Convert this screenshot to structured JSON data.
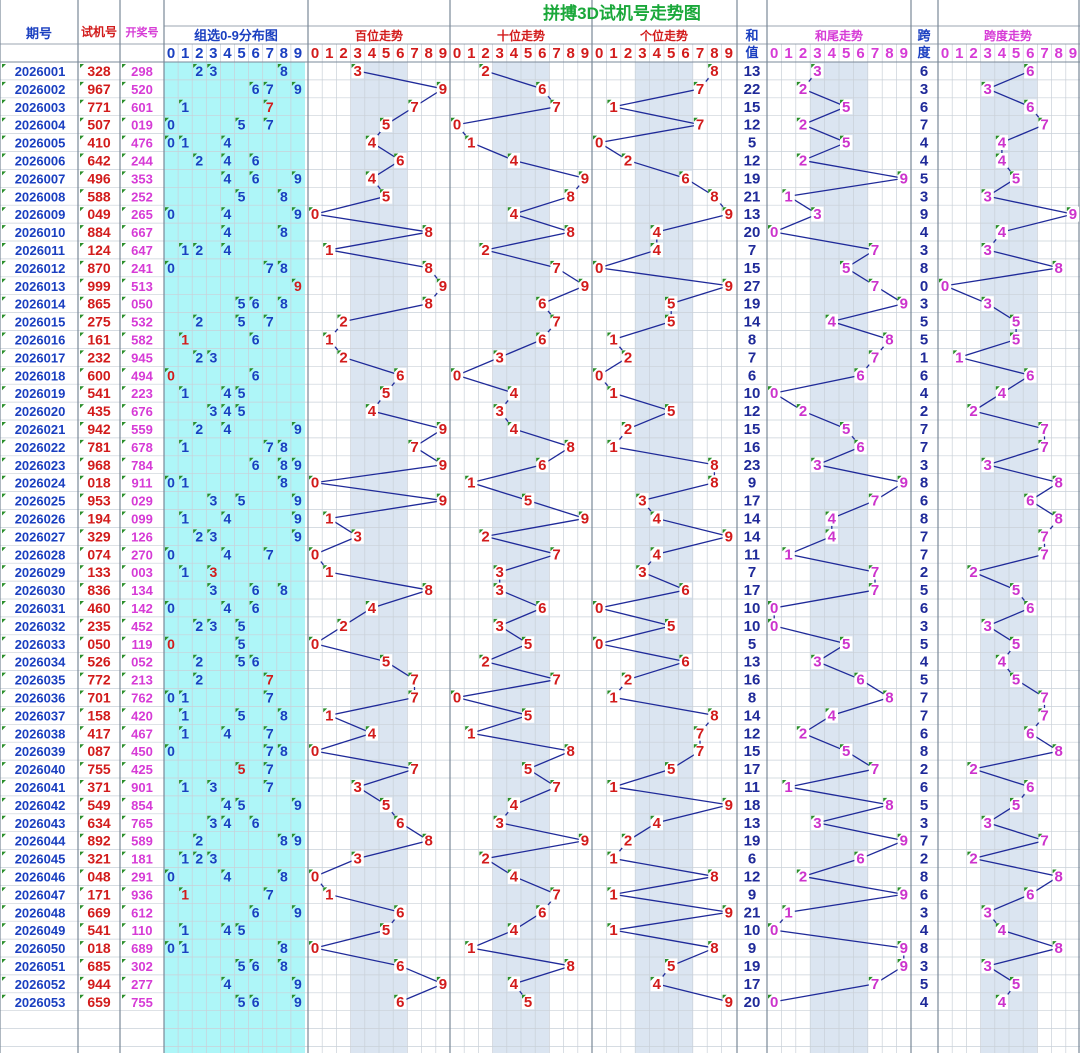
{
  "title": "拼搏3D试机号走势图",
  "headers": {
    "period": "期号",
    "test": "试机号",
    "draw": "开奖号",
    "dist": "组选0-9分布图",
    "hundreds": "百位走势",
    "tens": "十位走势",
    "units": "个位走势",
    "sum_top": "和",
    "sum_bottom": "值",
    "tail": "和尾走势",
    "span_top": "跨",
    "span_bottom": "度",
    "span_trend": "跨度走势"
  },
  "digits": [
    "0",
    "1",
    "2",
    "3",
    "4",
    "5",
    "6",
    "7",
    "8",
    "9"
  ],
  "colors": {
    "title": "#1aa83a",
    "header_blue": "#1a3fc0",
    "header_red": "#d21b1b",
    "header_pink": "#d63bd6",
    "dist_bg": "#aef6f8",
    "band": "#dbe5f1",
    "grid": "#c9d0d8",
    "line": "#1f2a99",
    "sum_text": "#1f2a99",
    "tail_text": "#cc33cc"
  },
  "chart_data": {
    "type": "table",
    "rows": [
      {
        "period": "2026001",
        "test": "328",
        "draw": "298",
        "sum": "13",
        "tail": "3",
        "span": "6"
      },
      {
        "period": "2026002",
        "test": "967",
        "draw": "520",
        "sum": "22",
        "tail": "2",
        "span": "3"
      },
      {
        "period": "2026003",
        "test": "771",
        "draw": "601",
        "sum": "15",
        "tail": "5",
        "span": "6"
      },
      {
        "period": "2026004",
        "test": "507",
        "draw": "019",
        "sum": "12",
        "tail": "2",
        "span": "7"
      },
      {
        "period": "2026005",
        "test": "410",
        "draw": "476",
        "sum": "5",
        "tail": "5",
        "span": "4"
      },
      {
        "period": "2026006",
        "test": "642",
        "draw": "244",
        "sum": "12",
        "tail": "2",
        "span": "4"
      },
      {
        "period": "2026007",
        "test": "496",
        "draw": "353",
        "sum": "19",
        "tail": "9",
        "span": "5"
      },
      {
        "period": "2026008",
        "test": "588",
        "draw": "252",
        "sum": "21",
        "tail": "1",
        "span": "3"
      },
      {
        "period": "2026009",
        "test": "049",
        "draw": "265",
        "sum": "13",
        "tail": "3",
        "span": "9"
      },
      {
        "period": "2026010",
        "test": "884",
        "draw": "667",
        "sum": "20",
        "tail": "0",
        "span": "4"
      },
      {
        "period": "2026011",
        "test": "124",
        "draw": "647",
        "sum": "7",
        "tail": "7",
        "span": "3"
      },
      {
        "period": "2026012",
        "test": "870",
        "draw": "241",
        "sum": "15",
        "tail": "5",
        "span": "8"
      },
      {
        "period": "2026013",
        "test": "999",
        "draw": "513",
        "sum": "27",
        "tail": "7",
        "span": "0"
      },
      {
        "period": "2026014",
        "test": "865",
        "draw": "050",
        "sum": "19",
        "tail": "9",
        "span": "3"
      },
      {
        "period": "2026015",
        "test": "275",
        "draw": "532",
        "sum": "14",
        "tail": "4",
        "span": "5"
      },
      {
        "period": "2026016",
        "test": "161",
        "draw": "582",
        "sum": "8",
        "tail": "8",
        "span": "5"
      },
      {
        "period": "2026017",
        "test": "232",
        "draw": "945",
        "sum": "7",
        "tail": "7",
        "span": "1"
      },
      {
        "period": "2026018",
        "test": "600",
        "draw": "494",
        "sum": "6",
        "tail": "6",
        "span": "6"
      },
      {
        "period": "2026019",
        "test": "541",
        "draw": "223",
        "sum": "10",
        "tail": "0",
        "span": "4"
      },
      {
        "period": "2026020",
        "test": "435",
        "draw": "676",
        "sum": "12",
        "tail": "2",
        "span": "2"
      },
      {
        "period": "2026021",
        "test": "942",
        "draw": "559",
        "sum": "15",
        "tail": "5",
        "span": "7"
      },
      {
        "period": "2026022",
        "test": "781",
        "draw": "678",
        "sum": "16",
        "tail": "6",
        "span": "7"
      },
      {
        "period": "2026023",
        "test": "968",
        "draw": "784",
        "sum": "23",
        "tail": "3",
        "span": "3"
      },
      {
        "period": "2026024",
        "test": "018",
        "draw": "911",
        "sum": "9",
        "tail": "9",
        "span": "8"
      },
      {
        "period": "2026025",
        "test": "953",
        "draw": "029",
        "sum": "17",
        "tail": "7",
        "span": "6"
      },
      {
        "period": "2026026",
        "test": "194",
        "draw": "099",
        "sum": "14",
        "tail": "4",
        "span": "8"
      },
      {
        "period": "2026027",
        "test": "329",
        "draw": "126",
        "sum": "14",
        "tail": "4",
        "span": "7"
      },
      {
        "period": "2026028",
        "test": "074",
        "draw": "270",
        "sum": "11",
        "tail": "1",
        "span": "7"
      },
      {
        "period": "2026029",
        "test": "133",
        "draw": "003",
        "sum": "7",
        "tail": "7",
        "span": "2"
      },
      {
        "period": "2026030",
        "test": "836",
        "draw": "134",
        "sum": "17",
        "tail": "7",
        "span": "5"
      },
      {
        "period": "2026031",
        "test": "460",
        "draw": "142",
        "sum": "10",
        "tail": "0",
        "span": "6"
      },
      {
        "period": "2026032",
        "test": "235",
        "draw": "452",
        "sum": "10",
        "tail": "0",
        "span": "3"
      },
      {
        "period": "2026033",
        "test": "050",
        "draw": "119",
        "sum": "5",
        "tail": "5",
        "span": "5"
      },
      {
        "period": "2026034",
        "test": "526",
        "draw": "052",
        "sum": "13",
        "tail": "3",
        "span": "4"
      },
      {
        "period": "2026035",
        "test": "772",
        "draw": "213",
        "sum": "16",
        "tail": "6",
        "span": "5"
      },
      {
        "period": "2026036",
        "test": "701",
        "draw": "762",
        "sum": "8",
        "tail": "8",
        "span": "7"
      },
      {
        "period": "2026037",
        "test": "158",
        "draw": "420",
        "sum": "14",
        "tail": "4",
        "span": "7"
      },
      {
        "period": "2026038",
        "test": "417",
        "draw": "467",
        "sum": "12",
        "tail": "2",
        "span": "6"
      },
      {
        "period": "2026039",
        "test": "087",
        "draw": "450",
        "sum": "15",
        "tail": "5",
        "span": "8"
      },
      {
        "period": "2026040",
        "test": "755",
        "draw": "425",
        "sum": "17",
        "tail": "7",
        "span": "2"
      },
      {
        "period": "2026041",
        "test": "371",
        "draw": "901",
        "sum": "11",
        "tail": "1",
        "span": "6"
      },
      {
        "period": "2026042",
        "test": "549",
        "draw": "854",
        "sum": "18",
        "tail": "8",
        "span": "5"
      },
      {
        "period": "2026043",
        "test": "634",
        "draw": "765",
        "sum": "13",
        "tail": "3",
        "span": "3"
      },
      {
        "period": "2026044",
        "test": "892",
        "draw": "589",
        "sum": "19",
        "tail": "9",
        "span": "7"
      },
      {
        "period": "2026045",
        "test": "321",
        "draw": "181",
        "sum": "6",
        "tail": "6",
        "span": "2"
      },
      {
        "period": "2026046",
        "test": "048",
        "draw": "291",
        "sum": "12",
        "tail": "2",
        "span": "8"
      },
      {
        "period": "2026047",
        "test": "171",
        "draw": "936",
        "sum": "9",
        "tail": "9",
        "span": "6"
      },
      {
        "period": "2026048",
        "test": "669",
        "draw": "612",
        "sum": "21",
        "tail": "1",
        "span": "3"
      },
      {
        "period": "2026049",
        "test": "541",
        "draw": "110",
        "sum": "10",
        "tail": "0",
        "span": "4"
      },
      {
        "period": "2026050",
        "test": "018",
        "draw": "689",
        "sum": "9",
        "tail": "9",
        "span": "8"
      },
      {
        "period": "2026051",
        "test": "685",
        "draw": "302",
        "sum": "19",
        "tail": "9",
        "span": "3"
      },
      {
        "period": "2026052",
        "test": "944",
        "draw": "277",
        "sum": "17",
        "tail": "7",
        "span": "5"
      },
      {
        "period": "2026053",
        "test": "659",
        "draw": "755",
        "sum": "20",
        "tail": "0",
        "span": "4"
      }
    ]
  }
}
